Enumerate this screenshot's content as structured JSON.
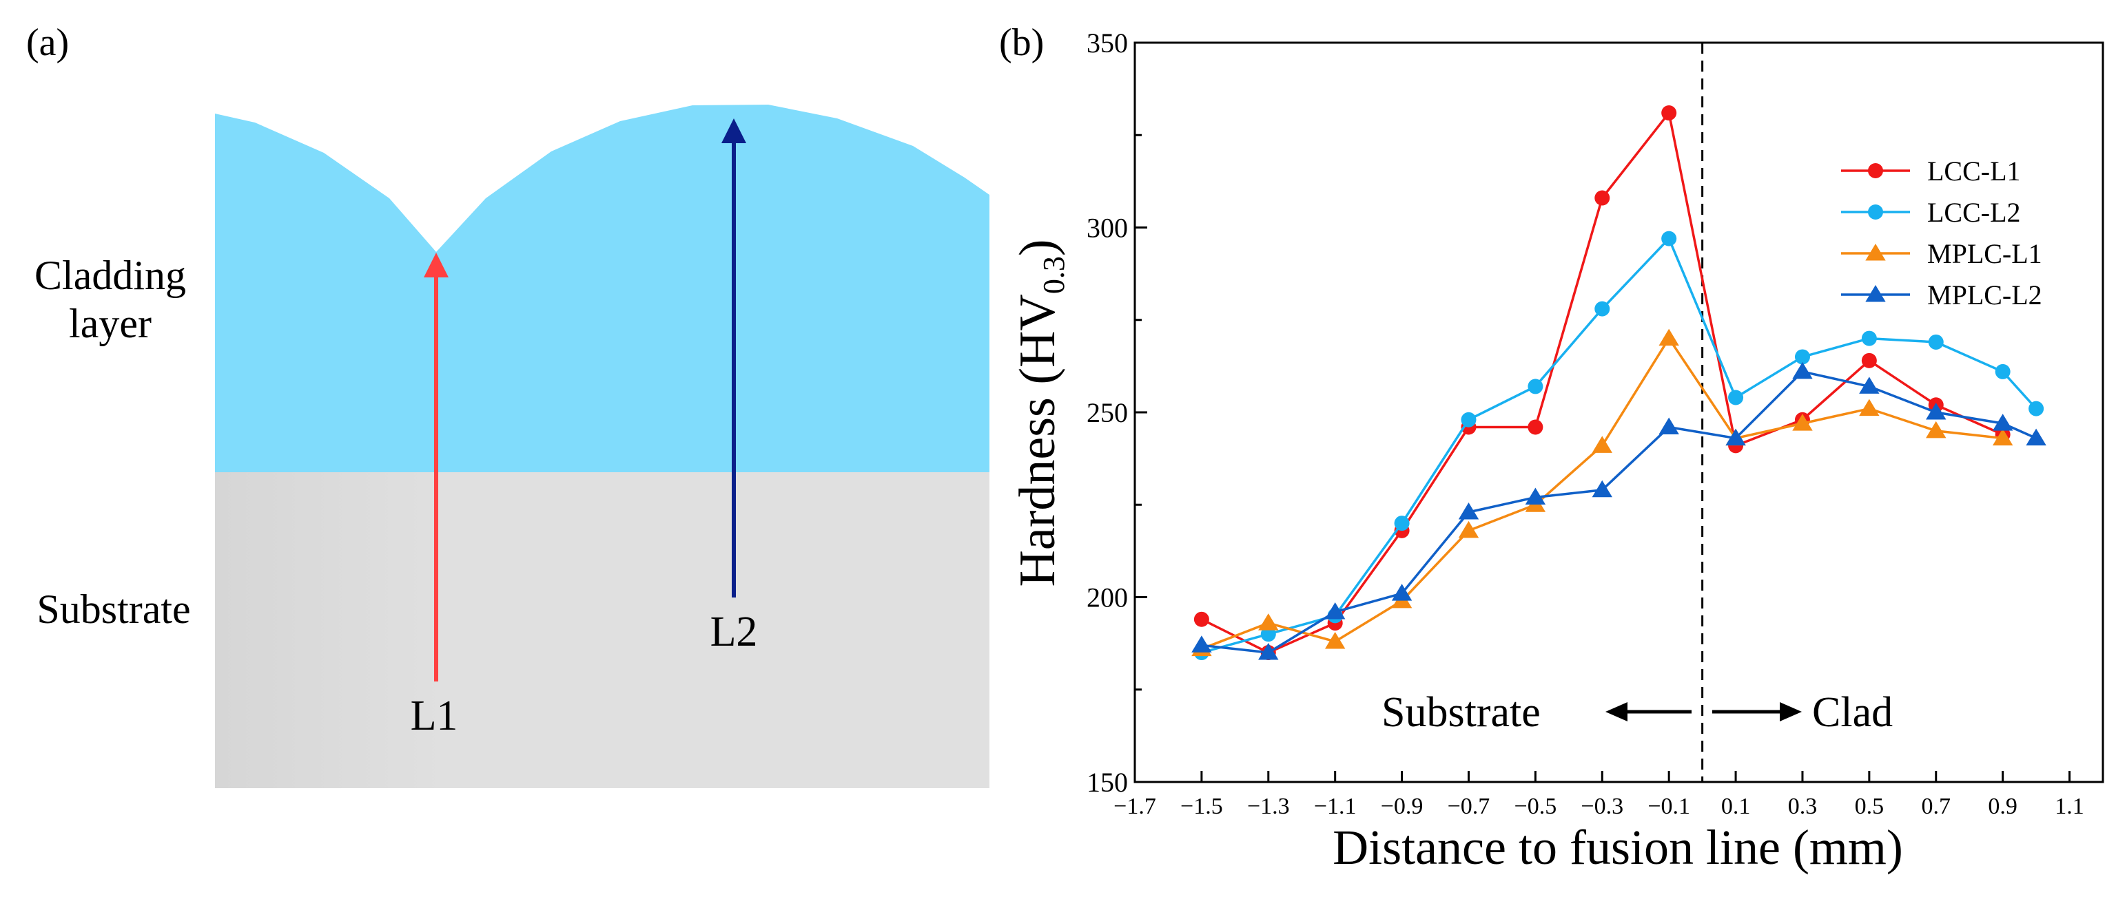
{
  "panel_a": {
    "label": "(a)",
    "cladding_label_line1": "Cladding",
    "cladding_label_line2": "layer",
    "substrate_label": "Substrate",
    "line1_label": "L1",
    "line2_label": "L2",
    "colors": {
      "cladding": "#80dcfc",
      "substrate": "#e0e0e0",
      "line1": "#ff4040",
      "line2": "#0a1f8a"
    }
  },
  "panel_b": {
    "label": "(b)",
    "substrate_annotation": "Substrate",
    "clad_annotation": "Clad"
  },
  "chart_data": {
    "type": "line",
    "title": "",
    "xlabel": "Distance to fusion line (mm)",
    "ylabel_main": "Hardness (HV",
    "ylabel_sub": "0.3",
    "ylabel_close": ")",
    "xlim": [
      -1.7,
      1.2
    ],
    "ylim": [
      150,
      350
    ],
    "xticks": [
      -1.7,
      -1.5,
      -1.3,
      -1.1,
      -0.9,
      -0.7,
      -0.5,
      -0.3,
      -0.1,
      0.1,
      0.3,
      0.5,
      0.7,
      0.9,
      1.1
    ],
    "xtick_labels": [
      "−1.7",
      "−1.5",
      "−1.3",
      "−1.1",
      "−0.9",
      "−0.7",
      "−0.5",
      "−0.3",
      "−0.1",
      "0.1",
      "0.3",
      "0.5",
      "0.7",
      "0.9",
      "1.1"
    ],
    "yticks": [
      150,
      200,
      250,
      300,
      350
    ],
    "ytick_labels": [
      "150",
      "200",
      "250",
      "300",
      "350"
    ],
    "fusion_line_x": 0,
    "legend_position": "top-right",
    "series": [
      {
        "name": "LCC-L1",
        "color": "#f01818",
        "marker": "circle",
        "x": [
          -1.5,
          -1.3,
          -1.1,
          -0.9,
          -0.7,
          -0.5,
          -0.3,
          -0.1,
          0.1,
          0.3,
          0.5,
          0.7,
          0.9
        ],
        "y": [
          194,
          185,
          193,
          218,
          246,
          246,
          308,
          331,
          241,
          248,
          264,
          252,
          244
        ]
      },
      {
        "name": "LCC-L2",
        "color": "#18b0f0",
        "marker": "circle",
        "x": [
          -1.5,
          -1.3,
          -1.1,
          -0.9,
          -0.7,
          -0.5,
          -0.3,
          -0.1,
          0.1,
          0.3,
          0.5,
          0.7,
          0.9,
          1.0
        ],
        "y": [
          185,
          190,
          195,
          220,
          248,
          257,
          278,
          297,
          254,
          265,
          270,
          269,
          261,
          251
        ]
      },
      {
        "name": "MPLC-L1",
        "color": "#f58a12",
        "marker": "triangle",
        "x": [
          -1.5,
          -1.3,
          -1.1,
          -0.9,
          -0.7,
          -0.5,
          -0.3,
          -0.1,
          0.1,
          0.3,
          0.5,
          0.7,
          0.9
        ],
        "y": [
          186,
          193,
          188,
          199,
          218,
          225,
          241,
          270,
          243,
          247,
          251,
          245,
          243
        ]
      },
      {
        "name": "MPLC-L2",
        "color": "#1060c8",
        "marker": "triangle",
        "x": [
          -1.5,
          -1.3,
          -1.1,
          -0.9,
          -0.7,
          -0.5,
          -0.3,
          -0.1,
          0.1,
          0.3,
          0.5,
          0.7,
          0.9,
          1.0
        ],
        "y": [
          187,
          185,
          196,
          201,
          223,
          227,
          229,
          246,
          243,
          261,
          257,
          250,
          247,
          243
        ]
      }
    ]
  }
}
